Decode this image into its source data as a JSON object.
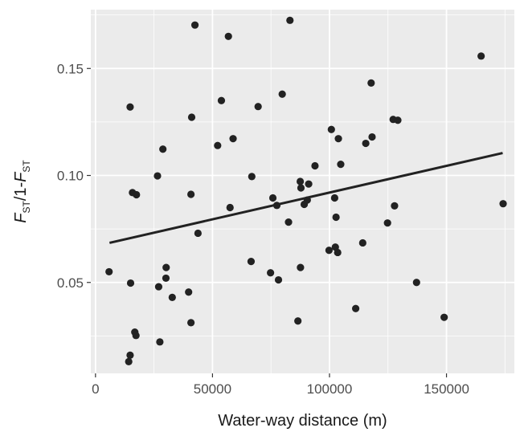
{
  "chart_data": {
    "type": "scatter",
    "title": "",
    "xlabel": "Water-way distance (m)",
    "ylabel": {
      "parts": [
        "F",
        "ST",
        "/1-",
        "F",
        "ST"
      ]
    },
    "xlim": [
      -2000,
      179000
    ],
    "ylim": [
      0.0075,
      0.1775
    ],
    "x_ticks": [
      0,
      50000,
      100000,
      150000
    ],
    "x_tick_labels": [
      "0",
      "50000",
      "100000",
      "150000"
    ],
    "y_ticks": [
      0.05,
      0.1,
      0.15
    ],
    "y_tick_labels": [
      "0.05",
      "0.10",
      "0.15"
    ],
    "grid": true,
    "legend": "none",
    "colors": {
      "panel": "#ebebeb",
      "grid": "#ffffff",
      "points": "#222222",
      "line": "#222222"
    },
    "trend_line": {
      "x": [
        6000,
        174000
      ],
      "y": [
        0.0685,
        0.1105
      ]
    },
    "points": [
      [
        5800,
        0.055
      ],
      [
        14800,
        0.132
      ],
      [
        15000,
        0.0497
      ],
      [
        15800,
        0.092
      ],
      [
        17500,
        0.091
      ],
      [
        14800,
        0.016
      ],
      [
        14200,
        0.013
      ],
      [
        16800,
        0.0268
      ],
      [
        17300,
        0.0252
      ],
      [
        26500,
        0.0998
      ],
      [
        27000,
        0.048
      ],
      [
        27500,
        0.0222
      ],
      [
        28800,
        0.1123
      ],
      [
        30200,
        0.057
      ],
      [
        30100,
        0.052
      ],
      [
        32800,
        0.043
      ],
      [
        39800,
        0.0455
      ],
      [
        40800,
        0.0312
      ],
      [
        40800,
        0.0912
      ],
      [
        41100,
        0.1272
      ],
      [
        42500,
        0.1703
      ],
      [
        43800,
        0.073
      ],
      [
        52200,
        0.114
      ],
      [
        53800,
        0.135
      ],
      [
        56800,
        0.165
      ],
      [
        57500,
        0.085
      ],
      [
        58800,
        0.1172
      ],
      [
        66800,
        0.0995
      ],
      [
        66500,
        0.0598
      ],
      [
        69500,
        0.1322
      ],
      [
        74800,
        0.0545
      ],
      [
        75800,
        0.0895
      ],
      [
        77500,
        0.086
      ],
      [
        78200,
        0.0512
      ],
      [
        79800,
        0.138
      ],
      [
        82500,
        0.0782
      ],
      [
        83100,
        0.1725
      ],
      [
        86500,
        0.032
      ],
      [
        87600,
        0.057
      ],
      [
        87500,
        0.0972
      ],
      [
        87800,
        0.0942
      ],
      [
        89200,
        0.0865
      ],
      [
        90500,
        0.0885
      ],
      [
        91100,
        0.096
      ],
      [
        93800,
        0.1045
      ],
      [
        99800,
        0.065
      ],
      [
        100800,
        0.1215
      ],
      [
        102200,
        0.0895
      ],
      [
        102500,
        0.0665
      ],
      [
        102800,
        0.0805
      ],
      [
        103500,
        0.064
      ],
      [
        103800,
        0.1172
      ],
      [
        104800,
        0.1052
      ],
      [
        111200,
        0.0378
      ],
      [
        114200,
        0.0685
      ],
      [
        115500,
        0.115
      ],
      [
        117800,
        0.1432
      ],
      [
        118200,
        0.118
      ],
      [
        124800,
        0.0778
      ],
      [
        127200,
        0.1262
      ],
      [
        127800,
        0.0858
      ],
      [
        129200,
        0.1258
      ],
      [
        137200,
        0.05
      ],
      [
        149000,
        0.0337
      ],
      [
        164800,
        0.1558
      ],
      [
        174200,
        0.0868
      ]
    ]
  }
}
